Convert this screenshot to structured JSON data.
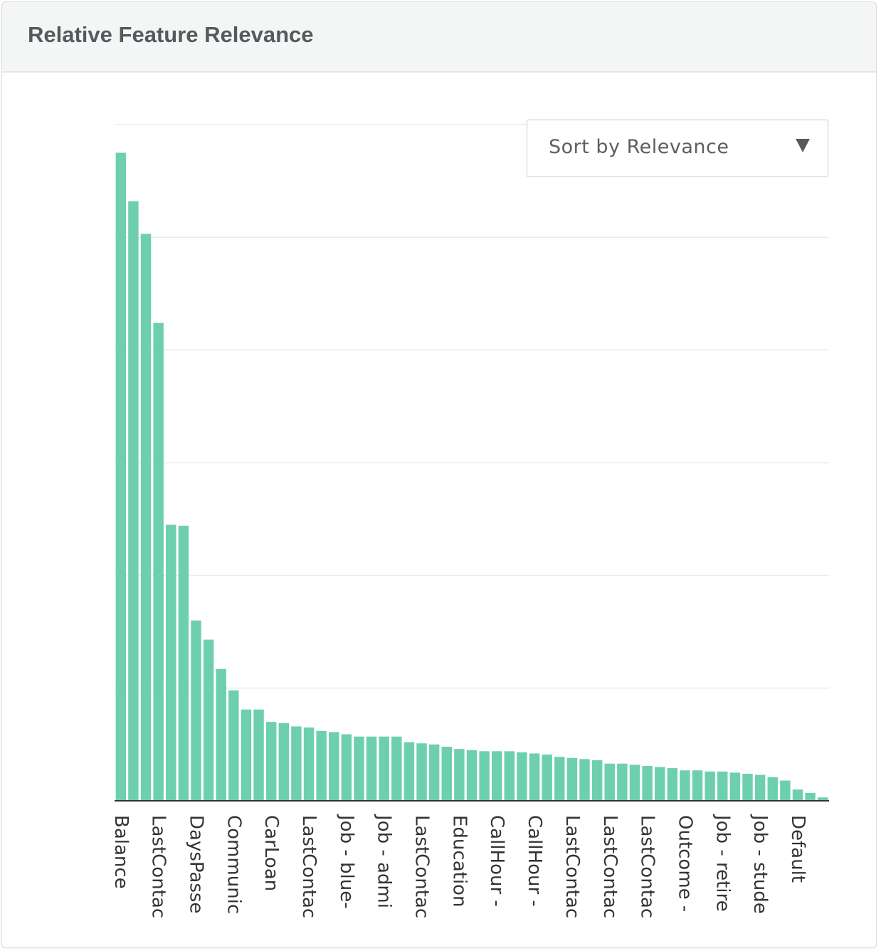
{
  "panel": {
    "title": "Relative Feature Relevance"
  },
  "sort_select": {
    "selected": "Sort by Relevance",
    "caret_icon": "triangle-down-icon"
  },
  "colors": {
    "bar": "#6ecfae",
    "grid": "#e9eded",
    "axis": "#333333",
    "header_bg": "#f4f5f5",
    "title": "#555a5e"
  },
  "chart_data": {
    "type": "bar",
    "title": "Relative Feature Relevance",
    "xlabel": "",
    "ylabel": "",
    "ylim": [
      0,
      6
    ],
    "grid": true,
    "legend": "none",
    "categories": [
      "Balance",
      "",
      "",
      "LastContac",
      "",
      "",
      "DaysPasse",
      "",
      "",
      "Communic",
      "",
      "",
      "CarLoan",
      "",
      "",
      "LastContac",
      "",
      "",
      "Job - blue-",
      "",
      "",
      "Job - admi",
      "",
      "",
      "LastContac",
      "",
      "",
      "Education",
      "",
      "",
      "CallHour -",
      "",
      "",
      "CallHour -",
      "",
      "",
      "LastContac",
      "",
      "",
      "LastContac",
      "",
      "",
      "LastContac",
      "",
      "",
      "Outcome -",
      "",
      "",
      "Job - retire",
      "",
      "",
      "Job - stude",
      "",
      "",
      "Default",
      "",
      ""
    ],
    "values": [
      5.75,
      5.32,
      5.03,
      4.24,
      2.45,
      2.44,
      1.6,
      1.43,
      1.17,
      0.98,
      0.81,
      0.81,
      0.7,
      0.69,
      0.66,
      0.65,
      0.62,
      0.61,
      0.59,
      0.57,
      0.57,
      0.57,
      0.57,
      0.52,
      0.51,
      0.5,
      0.48,
      0.46,
      0.45,
      0.44,
      0.44,
      0.44,
      0.43,
      0.42,
      0.41,
      0.39,
      0.38,
      0.37,
      0.36,
      0.33,
      0.33,
      0.32,
      0.31,
      0.3,
      0.29,
      0.27,
      0.27,
      0.26,
      0.26,
      0.25,
      0.24,
      0.23,
      0.21,
      0.18,
      0.1,
      0.07,
      0.03
    ]
  }
}
